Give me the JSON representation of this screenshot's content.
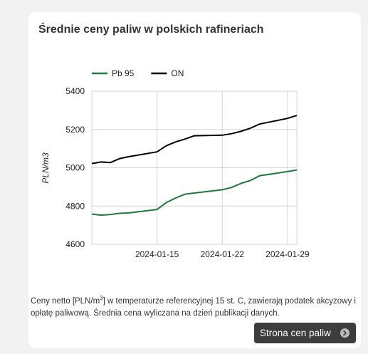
{
  "card": {
    "title": "Średnie ceny paliw w polskich rafineriach",
    "note_before_sup": "Ceny netto [PLN/m",
    "note_sup": "3",
    "note_after_sup": "] w temperaturze referencyjnej 15 st. C, zawierają podatek akcyzowy i opłatę paliwową. Średnia cena wyliczana na dzień publikacji danych.",
    "button_label": "Strona cen paliw",
    "button_icon": "chevron-right-circle-icon"
  },
  "chart_data": {
    "type": "line",
    "title": "",
    "xlabel": "",
    "ylabel": "PLN/m3",
    "ylim": [
      4600,
      5400
    ],
    "yticks": [
      4600,
      4800,
      5000,
      5200,
      5400
    ],
    "xlim": [
      "2024-01-08",
      "2024-01-30"
    ],
    "xticks": [
      "2024-01-15",
      "2024-01-22",
      "2024-01-29"
    ],
    "grid": true,
    "legend": "top-left",
    "x": [
      "2024-01-08",
      "2024-01-09",
      "2024-01-10",
      "2024-01-11",
      "2024-01-12",
      "2024-01-15",
      "2024-01-16",
      "2024-01-17",
      "2024-01-18",
      "2024-01-19",
      "2024-01-22",
      "2024-01-23",
      "2024-01-24",
      "2024-01-25",
      "2024-01-26",
      "2024-01-29",
      "2024-01-30"
    ],
    "series": [
      {
        "name": "Pb 95",
        "color": "#1e7a3c",
        "values": [
          4758,
          4752,
          4756,
          4762,
          4764,
          4782,
          4818,
          4842,
          4862,
          4868,
          4885,
          4897,
          4918,
          4933,
          4958,
          4980,
          4988
        ]
      },
      {
        "name": "ON",
        "color": "#000000",
        "values": [
          5022,
          5030,
          5027,
          5048,
          5058,
          5083,
          5115,
          5135,
          5150,
          5167,
          5170,
          5178,
          5190,
          5206,
          5228,
          5258,
          5273
        ]
      }
    ]
  }
}
